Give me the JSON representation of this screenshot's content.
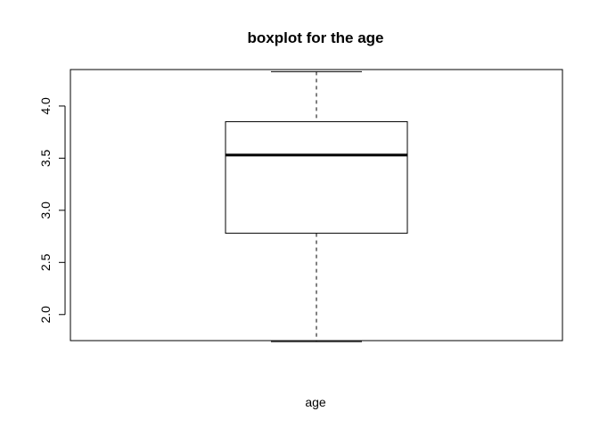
{
  "chart_data": {
    "type": "boxplot",
    "title": "boxplot for the age",
    "xlabel": "age",
    "ylabel": "",
    "ylim": [
      1.75,
      4.35
    ],
    "yticks": [
      2.0,
      2.5,
      3.0,
      3.5,
      4.0
    ],
    "ytick_labels": [
      "2.0",
      "2.5",
      "3.0",
      "3.5",
      "4.0"
    ],
    "box": {
      "whisker_low": 1.74,
      "q1": 2.78,
      "median": 3.53,
      "q3": 3.85,
      "whisker_high": 4.33
    },
    "grid": false,
    "colors": {
      "stroke": "#000000",
      "fill": "#ffffff"
    }
  }
}
